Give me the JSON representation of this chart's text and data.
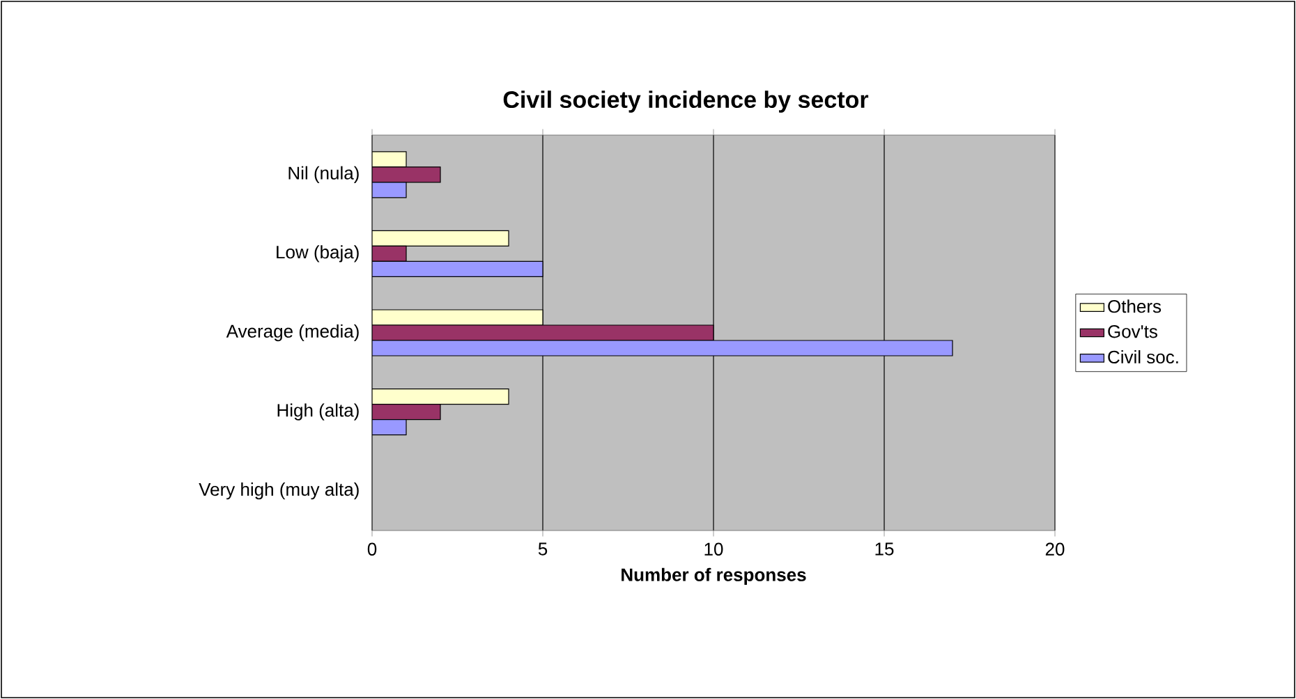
{
  "chart_data": {
    "type": "bar",
    "orientation": "horizontal",
    "title": "Civil society incidence by sector",
    "xlabel": "Number of responses",
    "categories": [
      "Nil (nula)",
      "Low (baja)",
      "Average (media)",
      "High (alta)",
      "Very high (muy alta)"
    ],
    "series": [
      {
        "name": "Others",
        "color": "#ffffcc",
        "values": [
          1,
          4,
          5,
          4,
          0
        ]
      },
      {
        "name": "Gov'ts",
        "color": "#993366",
        "values": [
          2,
          1,
          10,
          2,
          0
        ]
      },
      {
        "name": "Civil soc.",
        "color": "#9999ff",
        "values": [
          1,
          5,
          17,
          1,
          0
        ]
      }
    ],
    "xlim": [
      0,
      20
    ],
    "xticks": [
      0,
      5,
      10,
      15,
      20
    ],
    "grid": "x",
    "legend": "right"
  }
}
